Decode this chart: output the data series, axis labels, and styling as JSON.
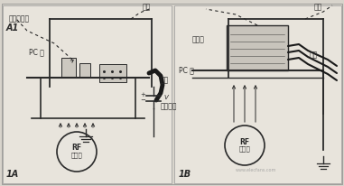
{
  "bg_color": "#d8d4cc",
  "line_color": "#2a2a2a",
  "light_bg": "#e8e4dc",
  "white": "#f5f3ee",
  "label_A": "A1",
  "label_1A": "1A",
  "label_1B": "1B",
  "text_guanxin": "关心的区域",
  "text_jike_A": "机壳",
  "text_jike_B": "机壳",
  "text_pc_A": "PC 板",
  "text_pc_B": "PC 板",
  "text_cable_A": "电缆",
  "text_cable_B": "电缆",
  "text_rf_line1": "RF",
  "text_rf_line2": "噪声源",
  "text_stray": "杂散电容",
  "text_connector": "接头片",
  "text_V": "V",
  "wm": "www.elecfans.com"
}
